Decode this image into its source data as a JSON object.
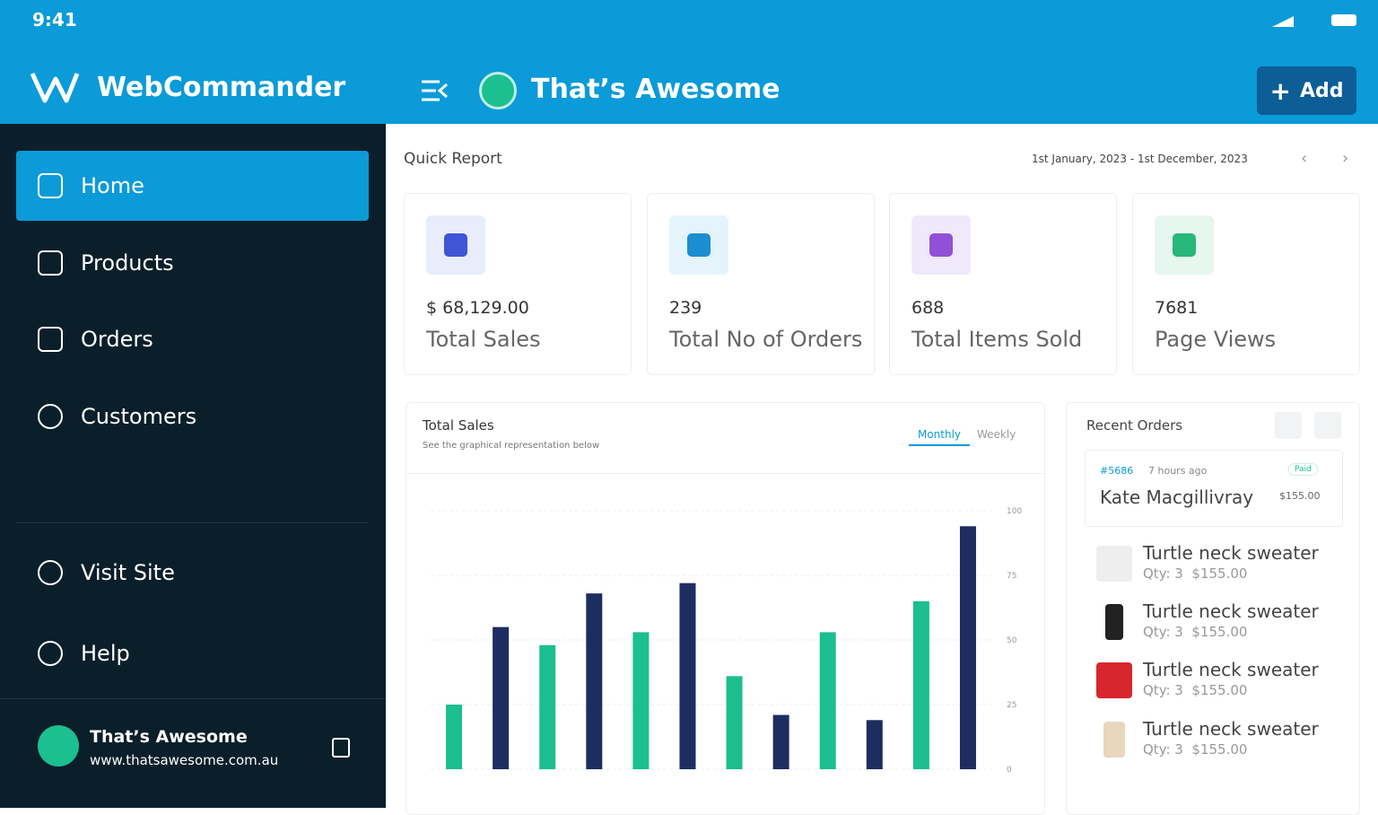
{
  "status_bar": {
    "time": "9:41"
  },
  "sidebar": {
    "brand": "WebCommander",
    "nav": [
      "Home",
      "Products",
      "Orders",
      "Customers"
    ],
    "secondary": [
      "Visit Site",
      "Help"
    ],
    "store": {
      "name": "That’s Awesome",
      "url": "www.thatsawesome.com.au"
    }
  },
  "header": {
    "store_name": "That’s Awesome",
    "add_button": "Add"
  },
  "quick_report": {
    "title": "Quick Report",
    "date_range": "1st January, 2023 - 1st December, 2023",
    "cards": [
      {
        "value": "$ 68,129.00",
        "label": "Total Sales"
      },
      {
        "value": "239",
        "label": "Total No of Orders"
      },
      {
        "value": "688",
        "label": "Total Items Sold"
      },
      {
        "value": "7681",
        "label": "Page Views"
      }
    ]
  },
  "chart_data": {
    "type": "bar",
    "title": "Total Sales",
    "subtitle": "See the graphical representation below",
    "tabs": [
      "Monthly",
      "Weekly"
    ],
    "categories": [
      null,
      null,
      null,
      null,
      null,
      null,
      null,
      null,
      null,
      null,
      null,
      null
    ],
    "values": [
      25,
      55,
      48,
      68,
      53,
      72,
      36,
      21,
      53,
      19,
      65,
      94
    ],
    "colors": [
      "#1cbf8f",
      "#1d2d5f",
      "#1cbf8f",
      "#1d2d5f",
      "#1cbf8f",
      "#1d2d5f",
      "#1cbf8f",
      "#1d2d5f",
      "#1cbf8f",
      "#1d2d5f",
      "#1cbf8f",
      "#1d2d5f"
    ],
    "ylim": [
      0,
      100
    ],
    "yticks": [
      0,
      25,
      50,
      75,
      100
    ],
    "grid": true
  },
  "recent_orders": {
    "title": "Recent Orders",
    "order": {
      "id": "#5686",
      "time": "7 hours ago",
      "status": "Paid",
      "customer": "Kate Macgillivray",
      "total": "$155.00"
    },
    "items": [
      {
        "name": "Turtle neck sweater",
        "qty": "Qty: 3",
        "price": "$155.00"
      },
      {
        "name": "Turtle neck sweater",
        "qty": "Qty: 3",
        "price": "$155.00"
      },
      {
        "name": "Turtle neck sweater",
        "qty": "Qty: 3",
        "price": "$155.00"
      },
      {
        "name": "Turtle neck sweater",
        "qty": "Qty: 3",
        "price": "$155.00"
      }
    ]
  }
}
